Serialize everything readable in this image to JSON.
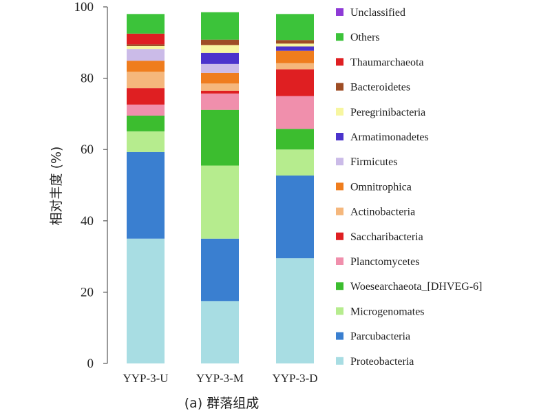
{
  "chart_data": {
    "type": "bar",
    "stacked": true,
    "ylabel": "相对丰度 (%)",
    "caption": "(a) 群落组成",
    "ylim": [
      0,
      100
    ],
    "yticks": [
      "0",
      "20",
      "40",
      "60",
      "80",
      "100"
    ],
    "categories": [
      "YYP-3-U",
      "YYP-3-M",
      "YYP-3-D"
    ],
    "legend_position": "right",
    "series": [
      {
        "name": "Proteobacteria",
        "color": "#a8dde3",
        "values": [
          35.0,
          17.5,
          29.5
        ]
      },
      {
        "name": "Parcubacteria",
        "color": "#3a7fd0",
        "values": [
          24.3,
          17.5,
          23.2
        ]
      },
      {
        "name": "Microgenomates",
        "color": "#b6ec8e",
        "values": [
          5.8,
          20.5,
          7.3
        ]
      },
      {
        "name": "Woesearchaeota_[DHVEG-6]",
        "color": "#3cbd2f",
        "values": [
          4.4,
          15.6,
          5.8
        ]
      },
      {
        "name": "Planctomycetes",
        "color": "#f08fac",
        "values": [
          3.1,
          4.6,
          9.2
        ]
      },
      {
        "name": "Saccharibacteria",
        "color": "#df1f22",
        "values": [
          4.6,
          0.8,
          7.5
        ]
      },
      {
        "name": "Actinobacteria",
        "color": "#f5b77c",
        "values": [
          4.6,
          2.0,
          1.7
        ]
      },
      {
        "name": "Omnitrophica",
        "color": "#ef7d1e",
        "values": [
          3.1,
          3.0,
          3.5
        ]
      },
      {
        "name": "Firmicutes",
        "color": "#cbbbe8",
        "values": [
          3.3,
          2.5,
          0.0
        ]
      },
      {
        "name": "Armatimonadetes",
        "color": "#4b33cc",
        "values": [
          0.0,
          3.1,
          1.2
        ]
      },
      {
        "name": "Peregrinibacteria",
        "color": "#f7f6a0",
        "values": [
          0.8,
          2.2,
          0.8
        ]
      },
      {
        "name": "Bacteroidetes",
        "color": "#9e4d25",
        "values": [
          0.5,
          1.5,
          1.0
        ]
      },
      {
        "name": "Thaumarchaeota",
        "color": "#df1f22",
        "values": [
          3.0,
          0.0,
          0.0
        ]
      },
      {
        "name": "Others",
        "color": "#3cc33a",
        "values": [
          5.5,
          7.7,
          7.3
        ]
      },
      {
        "name": "Unclassified",
        "color": "#8e3ad6",
        "values": [
          0.0,
          0.0,
          0.0
        ]
      }
    ]
  }
}
